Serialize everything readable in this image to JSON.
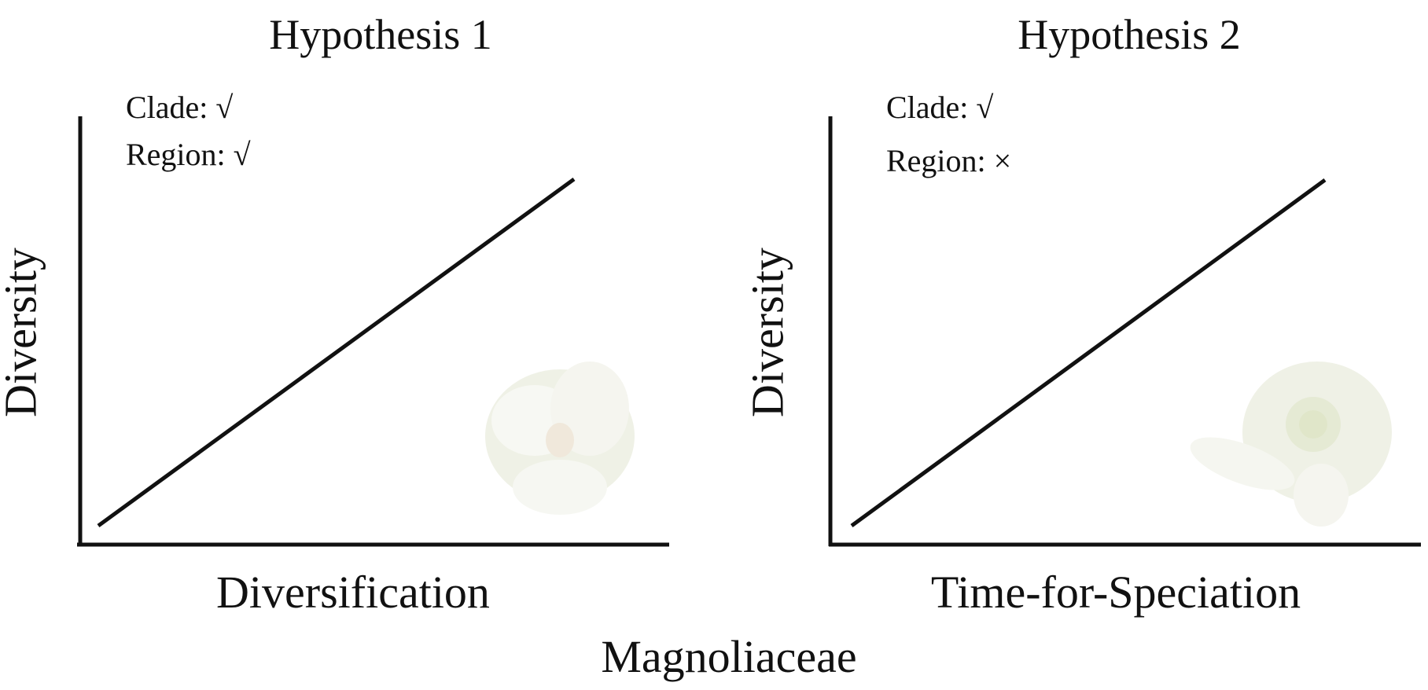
{
  "panels": [
    {
      "title": "Hypothesis 1",
      "notes": [
        "Clade: √",
        "Region: √"
      ],
      "x_label": "Diversification",
      "y_label": "Diversity"
    },
    {
      "title": "Hypothesis 2",
      "notes": [
        "Clade: √",
        "Region: ×"
      ],
      "x_label": "Time-for-Speciation",
      "y_label": "Diversity"
    }
  ],
  "caption": "Magnoliaceae"
}
